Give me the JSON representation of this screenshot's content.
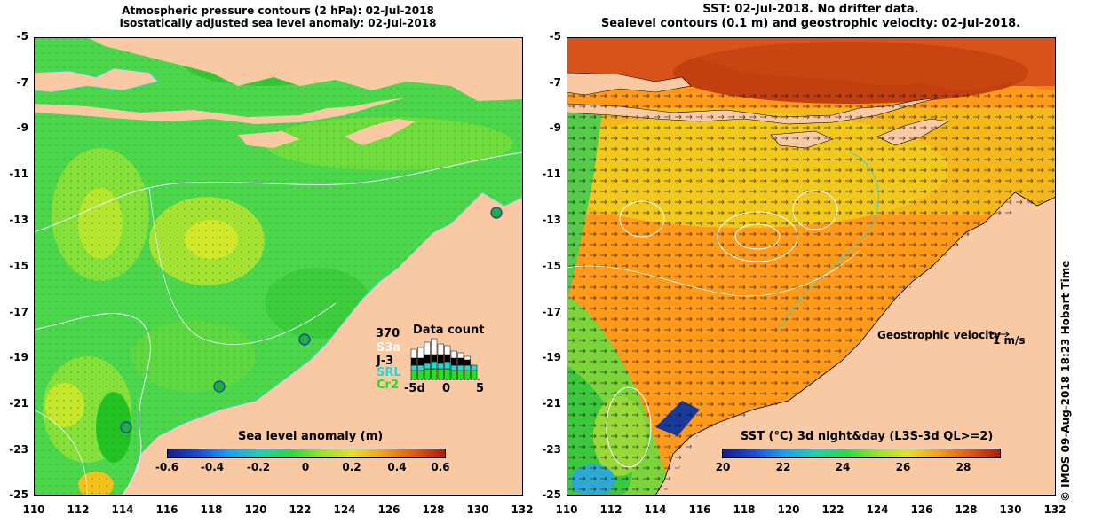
{
  "left_panel": {
    "title_line1": "Atmospheric pressure contours (2 hPa): 02-Jul-2018",
    "title_line2": "Isostatically adjusted sea level anomaly: 02-Jul-2018",
    "y_ticks": [
      "-5",
      "-7",
      "-9",
      "-11",
      "-13",
      "-15",
      "-17",
      "-19",
      "-21",
      "-23",
      "-25"
    ],
    "x_ticks": [
      "110",
      "112",
      "114",
      "116",
      "118",
      "120",
      "122",
      "124",
      "126",
      "128",
      "130",
      "132"
    ],
    "colorbar_title": "Sea level anomaly (m)",
    "colorbar_ticks": [
      "-0.6",
      "-0.4",
      "-0.2",
      "0",
      "0.2",
      "0.4",
      "0.6"
    ],
    "data_count": {
      "label": "Data count",
      "max": "370",
      "satellites": [
        {
          "name": "S3a",
          "color": "#ffffff"
        },
        {
          "name": "J-3",
          "color": "#000000"
        },
        {
          "name": "SRL",
          "color": "#2ad6d6"
        },
        {
          "name": "Cr2",
          "color": "#22e022"
        }
      ],
      "axis_labels": [
        "-5d",
        "0",
        "5"
      ]
    }
  },
  "right_panel": {
    "title_line1": "SST: 02-Jul-2018. No drifter data.",
    "title_line2": "Sealevel contours (0.1 m) and geostrophic velocity: 02-Jul-2018.",
    "y_ticks": [
      "-5",
      "-7",
      "-9",
      "-11",
      "-13",
      "-15",
      "-17",
      "-19",
      "-21",
      "-23",
      "-25"
    ],
    "x_ticks": [
      "110",
      "112",
      "114",
      "116",
      "118",
      "120",
      "122",
      "124",
      "126",
      "128",
      "130",
      "132"
    ],
    "velocity_legend": "Geostrophic velocity",
    "velocity_unit": "1 m/s",
    "colorbar_title": "SST (°C) 3d night&day (L3S-3d QL>=2)",
    "colorbar_ticks": [
      "20",
      "22",
      "24",
      "26",
      "28"
    ]
  },
  "credit": "© IMOS 09-Aug-2018 18:23 Hobart Time",
  "colors": {
    "land": "#f9c9a3",
    "sea_green": "#44d244",
    "sst_orange": "#ff9a1a"
  }
}
